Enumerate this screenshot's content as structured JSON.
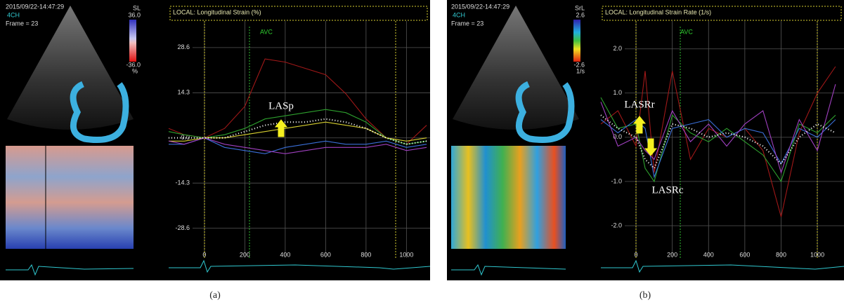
{
  "panels": [
    {
      "caption": "(a)",
      "timestamp": "2015/09/22-14:47:29",
      "view": "4CH",
      "frame": "Frame = 23",
      "scale_title": "SL",
      "scale_max": "36.0",
      "scale_min": "-36.0",
      "scale_unit": "%"
    },
    {
      "caption": "(b)",
      "timestamp": "2015/09/22-14:47:29",
      "view": "4CH",
      "frame": "Frame = 23",
      "scale_title": "SrL",
      "scale_max": "2.6",
      "scale_min": "-2.6",
      "scale_unit": "1/s"
    }
  ],
  "chart_data": [
    {
      "type": "line",
      "title": "LOCAL: Longitudinal Strain (%)",
      "annotations": [
        "AVC",
        "LASp"
      ],
      "x": [
        -177,
        -100,
        0,
        100,
        200,
        300,
        400,
        500,
        600,
        700,
        800,
        900,
        1000,
        1100
      ],
      "xlim": [
        -177,
        1117
      ],
      "xticks": [
        0,
        200,
        400,
        600,
        800,
        1000
      ],
      "ylim": [
        -38,
        37
      ],
      "yticks": [
        28.6,
        14.3,
        {
          "value": 0,
          "label": "0.0"
        },
        -14.3,
        -28.6
      ],
      "series": [
        {
          "color": "#a01818",
          "values": [
            3,
            1,
            0,
            3,
            10,
            25,
            24,
            22,
            20,
            14,
            6,
            0,
            -2,
            4
          ]
        },
        {
          "color": "#2ea02e",
          "values": [
            2,
            1,
            0,
            1,
            3,
            6,
            7,
            8,
            9,
            8,
            5,
            0,
            -2,
            -1
          ]
        },
        {
          "color": "#d8d030",
          "values": [
            -1,
            -1,
            0,
            0,
            1,
            2,
            3,
            4,
            5,
            4,
            3,
            0,
            -1,
            0
          ]
        },
        {
          "color": "#3a6fd8",
          "values": [
            -2,
            -2,
            0,
            -3,
            -4,
            -5,
            -3,
            -2,
            -1,
            -2,
            -2,
            -1,
            -3,
            -2
          ]
        },
        {
          "color": "#a040c0",
          "values": [
            -1,
            -2,
            0,
            -2,
            -3,
            -4,
            -5,
            -4,
            -3,
            -3,
            -3,
            -2,
            -4,
            -3
          ]
        },
        {
          "color": "#ffffff",
          "dashed": true,
          "values": [
            0,
            0,
            0,
            0,
            2,
            4,
            5,
            5,
            6,
            5,
            3,
            0,
            -2,
            -1
          ]
        }
      ]
    },
    {
      "type": "line",
      "title": "LOCAL: Longitudinal Strain Rate (1/s)",
      "annotations": [
        "AVC",
        "LASRr",
        "LASRc"
      ],
      "x": [
        -194,
        -100,
        0,
        50,
        100,
        200,
        300,
        400,
        500,
        600,
        700,
        800,
        900,
        1000,
        1100
      ],
      "xlim": [
        -194,
        1147
      ],
      "xticks": [
        0,
        200,
        400,
        600,
        800,
        1000
      ],
      "ylim": [
        -2.73,
        2.63
      ],
      "yticks": [
        {
          "value": 2,
          "label": "2.0"
        },
        {
          "value": 1,
          "label": "1.0"
        },
        {
          "value": 0,
          "label": "0.0"
        },
        {
          "value": -1,
          "label": "-1.0"
        },
        {
          "value": -2,
          "label": "-2.0"
        }
      ],
      "series": [
        {
          "color": "#a01818",
          "values": [
            0.3,
            0.6,
            -0.2,
            1.5,
            -0.8,
            1.5,
            -0.5,
            0.2,
            0,
            0.2,
            -0.3,
            -1.8,
            0.1,
            1.0,
            1.6
          ]
        },
        {
          "color": "#2ea02e",
          "values": [
            0.9,
            0.2,
            0.3,
            -0.7,
            -1.0,
            0.5,
            0.1,
            -0.1,
            0.2,
            -0.1,
            -0.4,
            -1.0,
            0.3,
            0.1,
            0.5
          ]
        },
        {
          "color": "#3a6fd8",
          "values": [
            0.4,
            0.1,
            0.4,
            0.2,
            -0.9,
            0.2,
            0.3,
            0.4,
            0,
            0.2,
            0.1,
            -0.6,
            0.2,
            0.0,
            0.4
          ]
        },
        {
          "color": "#a040c0",
          "values": [
            0.8,
            -0.2,
            0.0,
            -0.3,
            -0.5,
            0.6,
            -0.1,
            0.3,
            -0.2,
            0.3,
            0.6,
            -0.8,
            0.4,
            -0.3,
            1.2
          ]
        },
        {
          "color": "#ffffff",
          "dashed": true,
          "values": [
            0.5,
            0.2,
            0,
            -0.5,
            -0.7,
            0.3,
            0.2,
            0,
            0.1,
            0,
            -0.2,
            -0.6,
            0,
            0.3,
            0.1
          ]
        }
      ]
    }
  ]
}
